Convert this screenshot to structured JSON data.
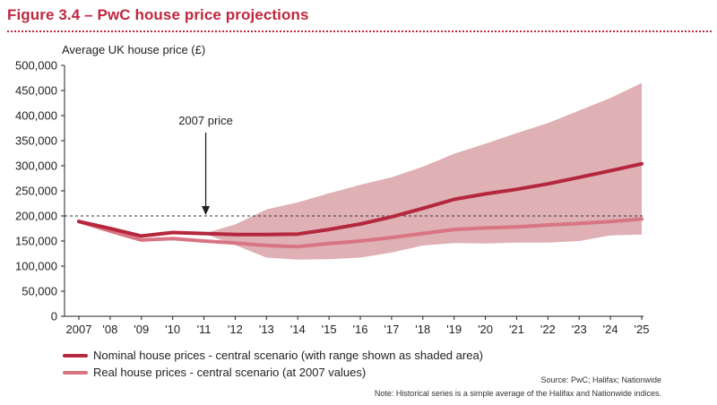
{
  "header": {
    "title": "Figure 3.4 – PwC house price projections"
  },
  "chart_data": {
    "type": "line",
    "ylabel": "Average UK house price (£)",
    "categories": [
      "2007",
      "'08",
      "'09",
      "'10",
      "'11",
      "'12",
      "'13",
      "'14",
      "'15",
      "'16",
      "'17",
      "'18",
      "'19",
      "'20",
      "'21",
      "'22",
      "'23",
      "'24",
      "'25"
    ],
    "y_ticks": [
      "0",
      "50,000",
      "100,000",
      "150,000",
      "200,000",
      "250,000",
      "300,000",
      "350,000",
      "400,000",
      "450,000",
      "500,000"
    ],
    "ylim": [
      0,
      500000
    ],
    "grid": false,
    "series": [
      {
        "name": "Nominal house prices - central scenario (with range shown as shaded area)",
        "color": "#b5273c",
        "values": [
          189000,
          175000,
          160000,
          167000,
          165000,
          163000,
          163000,
          164000,
          173000,
          184000,
          198000,
          215000,
          233000,
          244000,
          253000,
          264000,
          277000,
          290000,
          304000
        ]
      },
      {
        "name": "Real house prices - central scenario (at 2007 values)",
        "color": "#d87582",
        "values": [
          189000,
          170000,
          152000,
          155000,
          150000,
          146000,
          141000,
          139000,
          145000,
          150000,
          157000,
          165000,
          173000,
          176000,
          178000,
          182000,
          185000,
          189000,
          194000
        ]
      }
    ],
    "range_band": {
      "color": "#dfb0b4",
      "start_index": 4,
      "upper": [
        165000,
        183000,
        213000,
        227000,
        245000,
        262000,
        277000,
        298000,
        324000,
        344000,
        365000,
        385000,
        410000,
        435000,
        465000
      ],
      "lower": [
        165000,
        142000,
        117000,
        113000,
        114000,
        117000,
        127000,
        141000,
        146000,
        145000,
        147000,
        147000,
        150000,
        161000,
        163000
      ]
    },
    "reference_line": {
      "value": 200000,
      "style": "dashed"
    },
    "annotation": {
      "text": "2007 price",
      "category_index": 4
    }
  },
  "footer": {
    "source": "Source: PwC; Halifax; Nationwide",
    "note": "Note: Historical series is a simple average of the Halifax and Nationwide indices."
  }
}
